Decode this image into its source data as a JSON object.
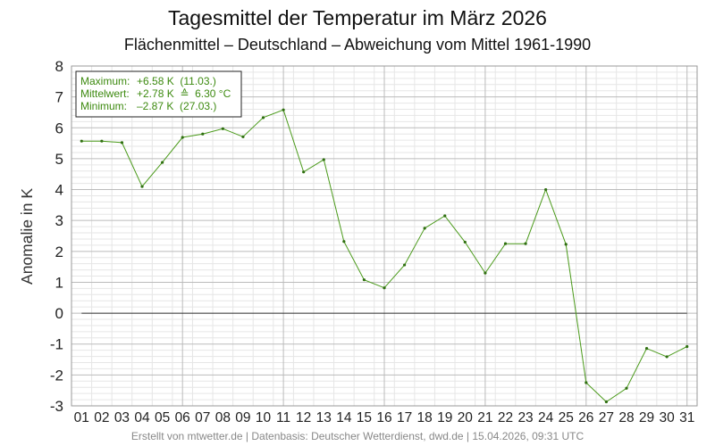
{
  "chart_data": {
    "type": "line",
    "title": "Tagesmittel der Temperatur im März 2026",
    "subtitle": "Flächenmittel – Deutschland – Abweichung vom Mittel 1961-1990",
    "xlabel": "",
    "ylabel": "Anomalie in K",
    "categories": [
      "01",
      "02",
      "03",
      "04",
      "05",
      "06",
      "07",
      "08",
      "09",
      "10",
      "11",
      "12",
      "13",
      "14",
      "15",
      "16",
      "17",
      "18",
      "19",
      "20",
      "21",
      "22",
      "23",
      "24",
      "25",
      "26",
      "27",
      "28",
      "29",
      "30",
      "31"
    ],
    "series": [
      {
        "values": [
          5.57,
          5.57,
          5.52,
          4.1,
          4.88,
          5.69,
          5.8,
          5.97,
          5.71,
          6.33,
          6.58,
          4.57,
          4.97,
          2.32,
          1.08,
          0.82,
          1.56,
          2.75,
          3.15,
          2.3,
          1.3,
          2.25,
          2.25,
          4.0,
          2.23,
          -2.25,
          -2.87,
          -2.43,
          -1.14,
          -1.41,
          -1.08
        ]
      }
    ],
    "ylim": [
      -3,
      8
    ],
    "yticks": [
      "8",
      "7",
      "6",
      "5",
      "4",
      "3",
      "2",
      "1",
      "0",
      "-1",
      "-2",
      "-3"
    ],
    "grid": true,
    "zero_line": true,
    "colors": {
      "line": "#4a9a1a",
      "stats_text": "#3d8a10",
      "zero_line": "#000000",
      "grid_major": "#bbbbbb",
      "grid_minor": "#e6e6e6"
    },
    "stats_box": {
      "max_label": "Maximum:",
      "max_value": "+6.58 K  (11.03.)",
      "mean_label": "Mittelwert:",
      "mean_value": "+2.78 K  ≙  6.30 °C",
      "min_label": "Minimum:",
      "min_value": "–2.87 K  (27.03.)"
    },
    "footer": "Erstellt von mtwetter.de | Datenbasis: Deutscher Wetterdienst, dwd.de | 15.04.2026, 09:31 UTC"
  }
}
